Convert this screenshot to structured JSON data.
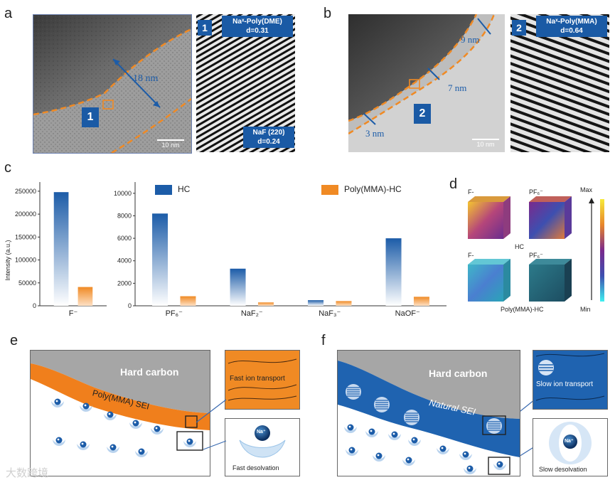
{
  "panels": {
    "a": "a",
    "b": "b",
    "c": "c",
    "d": "d",
    "e": "e",
    "f": "f"
  },
  "panel_a": {
    "thickness": "18 nm",
    "badge": "1",
    "scale": "10 nm",
    "zoom_badge": "1",
    "top_box": [
      "Naˣ-Poly(DME)",
      "d=0.31"
    ],
    "bottom_box": [
      "NaF (220)",
      "d=0.24"
    ]
  },
  "panel_b": {
    "thick_top": "9 nm",
    "thick_mid": "7 nm",
    "thick_bottom": "3 nm",
    "badge": "2",
    "scale": "10 nm",
    "zoom_badge": "2",
    "top_box": [
      "Naˣ-Poly(MMA)",
      "d=0.64"
    ]
  },
  "chart_data": {
    "type": "bar",
    "ylabel": "Intensity (a.u.)",
    "legend": [
      "HC",
      "Poly(MMA)-HC"
    ],
    "colors": {
      "HC": "#1c5ca8",
      "Poly(MMA)-HC": "#f08a24"
    },
    "left_axis": {
      "categories": [
        "F⁻"
      ],
      "ylim": [
        0,
        270000
      ],
      "ticks": [
        "0",
        "50000",
        "100000",
        "150000",
        "200000",
        "250000"
      ],
      "series": [
        {
          "name": "HC",
          "values": [
            248000
          ]
        },
        {
          "name": "Poly(MMA)-HC",
          "values": [
            41000
          ]
        }
      ]
    },
    "right_axis": {
      "categories": [
        "PF₆⁻",
        "NaF₂⁻",
        "NaF₃⁻",
        "NaOF⁻"
      ],
      "ylim": [
        0,
        11000
      ],
      "ticks": [
        "0",
        "2000",
        "4000",
        "6000",
        "8000",
        "10000"
      ],
      "series": [
        {
          "name": "HC",
          "values": [
            8200,
            3300,
            500,
            6000
          ]
        },
        {
          "name": "Poly(MMA)-HC",
          "values": [
            850,
            300,
            420,
            800
          ]
        }
      ]
    }
  },
  "panel_d": {
    "labels": [
      "F-",
      "PF₆⁻",
      "F-",
      "PF₆⁻"
    ],
    "hc_label": "HC",
    "poly_label": "Poly(MMA)-HC",
    "max": "Max",
    "min": "Min",
    "colors": {
      "hot": "#f4c430",
      "mid": "#7b2a8c",
      "cold": "#3fb6c8"
    }
  },
  "panel_e": {
    "hard_carbon": "Hard carbon",
    "sei": "Poly(MMA) SEI",
    "na": "Na⁺",
    "transport": "Fast ion transport",
    "desolvation": "Fast desolvation",
    "colors": {
      "sei": "#f07f1c",
      "carbon": "#a6a6a6"
    }
  },
  "panel_f": {
    "hard_carbon": "Hard carbon",
    "sei": "Natural SEI",
    "na": "Na⁺",
    "transport": "Slow ion transport",
    "desolvation": "Slow desolvation",
    "colors": {
      "sei": "#1f63b0",
      "carbon": "#a6a6a6"
    }
  },
  "watermark": "大数跨境"
}
